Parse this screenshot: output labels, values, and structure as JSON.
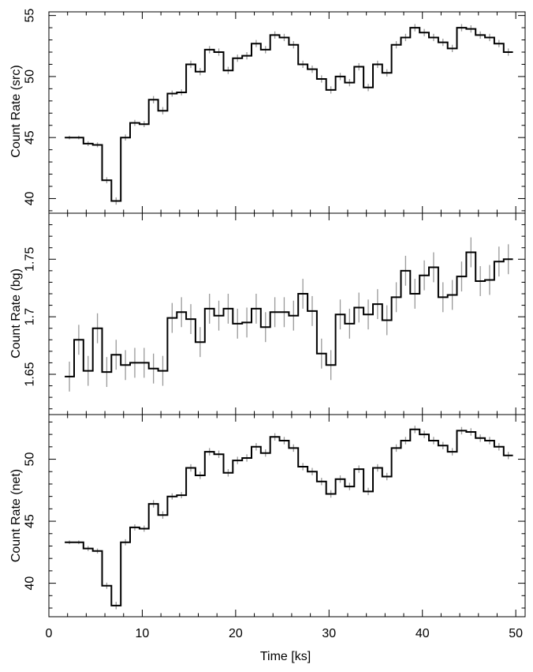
{
  "chart_data": [
    {
      "type": "line",
      "ylabel": "Count Rate (src)",
      "xlim": [
        0,
        51
      ],
      "ylim": [
        38.8,
        55.3
      ],
      "yticks": [
        40,
        45,
        50,
        55
      ],
      "ytick_labels": [
        "40",
        "45",
        "50",
        "55"
      ],
      "series": [
        {
          "x": [
            2.2,
            3.2,
            4.2,
            5.2,
            6.2,
            7.2,
            8.2,
            9.2,
            10.2,
            11.2,
            12.2,
            13.2,
            14.2,
            15.2,
            16.2,
            17.2,
            18.2,
            19.2,
            20.2,
            21.2,
            22.2,
            23.2,
            24.2,
            25.2,
            26.2,
            27.2,
            28.2,
            29.2,
            30.2,
            31.2,
            32.2,
            33.2,
            34.2,
            35.2,
            36.2,
            37.2,
            38.2,
            39.2,
            40.2,
            41.2,
            42.2,
            43.2,
            44.2,
            45.2,
            46.2,
            47.2,
            48.2,
            49.2
          ],
          "y": [
            45.0,
            45.0,
            44.5,
            44.4,
            41.5,
            39.8,
            45.0,
            46.2,
            46.1,
            48.1,
            47.2,
            48.6,
            48.7,
            51.0,
            50.4,
            52.2,
            52.0,
            50.5,
            51.5,
            51.7,
            52.7,
            52.2,
            53.4,
            53.2,
            52.6,
            51.0,
            50.6,
            49.8,
            48.9,
            50.0,
            49.5,
            50.8,
            49.1,
            51.0,
            50.3,
            52.6,
            53.2,
            54.0,
            53.6,
            53.2,
            52.8,
            52.3,
            54.0,
            53.9,
            53.4,
            53.2,
            52.7,
            52.0
          ],
          "errors": [
            0.15,
            0.15,
            0.2,
            0.2,
            0.25,
            0.3,
            0.25,
            0.25,
            0.25,
            0.3,
            0.3,
            0.25,
            0.25,
            0.3,
            0.3,
            0.3,
            0.3,
            0.3,
            0.3,
            0.3,
            0.3,
            0.3,
            0.3,
            0.3,
            0.3,
            0.3,
            0.3,
            0.3,
            0.3,
            0.3,
            0.3,
            0.3,
            0.3,
            0.3,
            0.3,
            0.3,
            0.3,
            0.3,
            0.3,
            0.3,
            0.3,
            0.3,
            0.3,
            0.3,
            0.3,
            0.3,
            0.3,
            0.3
          ]
        }
      ]
    },
    {
      "type": "line",
      "ylabel": "Count Rate (bg)",
      "xlim": [
        0,
        51
      ],
      "ylim": [
        1.615,
        1.79
      ],
      "yticks": [
        1.65,
        1.7,
        1.75
      ],
      "ytick_labels": [
        "1.65",
        "1.7",
        "1.75"
      ],
      "series": [
        {
          "x": [
            2.2,
            3.2,
            4.2,
            5.2,
            6.2,
            7.2,
            8.2,
            9.2,
            10.2,
            11.2,
            12.2,
            13.2,
            14.2,
            15.2,
            16.2,
            17.2,
            18.2,
            19.2,
            20.2,
            21.2,
            22.2,
            23.2,
            24.2,
            25.2,
            26.2,
            27.2,
            28.2,
            29.2,
            30.2,
            31.2,
            32.2,
            33.2,
            34.2,
            35.2,
            36.2,
            37.2,
            38.2,
            39.2,
            40.2,
            41.2,
            42.2,
            43.2,
            44.2,
            45.2,
            46.2,
            47.2,
            48.2,
            49.2
          ],
          "y": [
            1.648,
            1.68,
            1.653,
            1.69,
            1.652,
            1.667,
            1.658,
            1.66,
            1.66,
            1.655,
            1.653,
            1.699,
            1.704,
            1.698,
            1.678,
            1.707,
            1.701,
            1.707,
            1.694,
            1.695,
            1.707,
            1.691,
            1.704,
            1.704,
            1.701,
            1.72,
            1.705,
            1.668,
            1.658,
            1.702,
            1.694,
            1.708,
            1.702,
            1.711,
            1.697,
            1.717,
            1.74,
            1.72,
            1.736,
            1.743,
            1.717,
            1.719,
            1.735,
            1.756,
            1.731,
            1.732,
            1.748,
            1.75
          ],
          "errors": [
            0.013,
            0.013,
            0.013,
            0.013,
            0.013,
            0.013,
            0.013,
            0.013,
            0.013,
            0.013,
            0.013,
            0.013,
            0.013,
            0.013,
            0.013,
            0.013,
            0.013,
            0.013,
            0.013,
            0.013,
            0.013,
            0.013,
            0.013,
            0.013,
            0.013,
            0.013,
            0.013,
            0.013,
            0.013,
            0.013,
            0.013,
            0.013,
            0.013,
            0.013,
            0.013,
            0.013,
            0.013,
            0.013,
            0.013,
            0.013,
            0.013,
            0.013,
            0.013,
            0.013,
            0.013,
            0.013,
            0.013,
            0.013
          ]
        }
      ]
    },
    {
      "type": "line",
      "ylabel": "Count Rate (net)",
      "xlabel": "Time [ks]",
      "xlim": [
        0,
        51
      ],
      "ylim": [
        37.3,
        53.6
      ],
      "yticks": [
        40,
        45,
        50
      ],
      "ytick_labels": [
        "40",
        "45",
        "50"
      ],
      "xticks": [
        0,
        10,
        20,
        30,
        40,
        50
      ],
      "xtick_labels": [
        "0",
        "10",
        "20",
        "30",
        "40",
        "50"
      ],
      "series": [
        {
          "x": [
            2.2,
            3.2,
            4.2,
            5.2,
            6.2,
            7.2,
            8.2,
            9.2,
            10.2,
            11.2,
            12.2,
            13.2,
            14.2,
            15.2,
            16.2,
            17.2,
            18.2,
            19.2,
            20.2,
            21.2,
            22.2,
            23.2,
            24.2,
            25.2,
            26.2,
            27.2,
            28.2,
            29.2,
            30.2,
            31.2,
            32.2,
            33.2,
            34.2,
            35.2,
            36.2,
            37.2,
            38.2,
            39.2,
            40.2,
            41.2,
            42.2,
            43.2,
            44.2,
            45.2,
            46.2,
            47.2,
            48.2,
            49.2
          ],
          "y": [
            43.3,
            43.3,
            42.8,
            42.6,
            39.8,
            38.2,
            43.3,
            44.5,
            44.4,
            46.4,
            45.5,
            47.0,
            47.1,
            49.3,
            48.7,
            50.6,
            50.4,
            48.9,
            49.9,
            50.1,
            51.0,
            50.5,
            51.8,
            51.5,
            50.9,
            49.4,
            49.0,
            48.2,
            47.2,
            48.4,
            47.8,
            49.2,
            47.4,
            49.3,
            48.6,
            50.9,
            51.5,
            52.4,
            52.0,
            51.5,
            51.1,
            50.6,
            52.3,
            52.2,
            51.7,
            51.5,
            51.0,
            50.3
          ],
          "errors": [
            0.15,
            0.15,
            0.2,
            0.2,
            0.25,
            0.3,
            0.25,
            0.25,
            0.25,
            0.3,
            0.3,
            0.25,
            0.25,
            0.3,
            0.3,
            0.3,
            0.3,
            0.3,
            0.3,
            0.3,
            0.3,
            0.3,
            0.3,
            0.3,
            0.3,
            0.3,
            0.3,
            0.3,
            0.3,
            0.3,
            0.3,
            0.3,
            0.3,
            0.3,
            0.3,
            0.3,
            0.3,
            0.3,
            0.3,
            0.3,
            0.3,
            0.3,
            0.3,
            0.3,
            0.3,
            0.3,
            0.3,
            0.3
          ]
        }
      ]
    }
  ],
  "style": {
    "step_color": "#000000",
    "error_color": "#999999",
    "axis_color": "#000000"
  }
}
